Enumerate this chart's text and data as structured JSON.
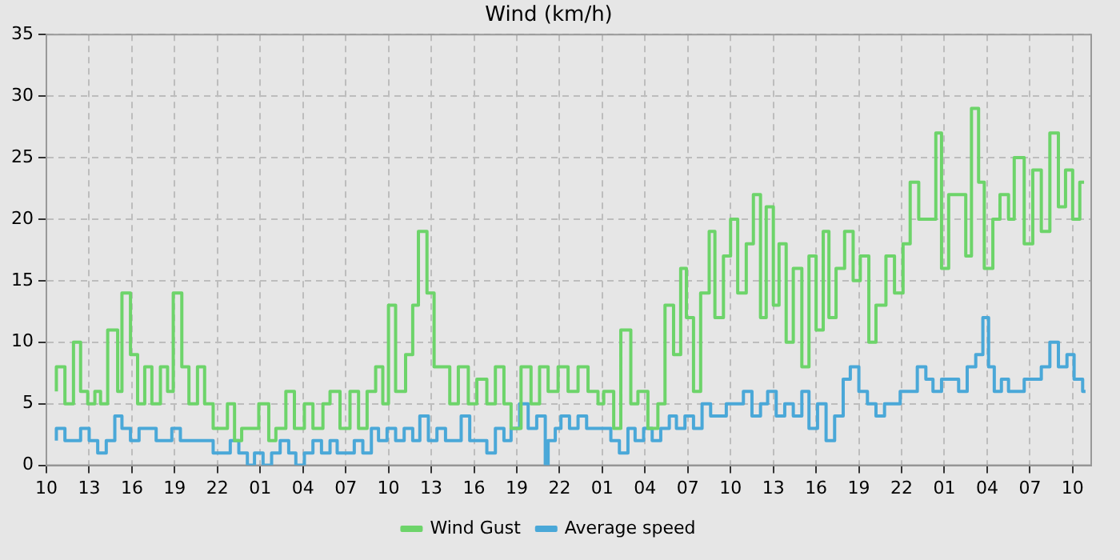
{
  "chart_data": {
    "type": "step",
    "title": "Wind (km/h)",
    "legend": "bottom",
    "grid": true,
    "line_style": "solid",
    "marker": "none",
    "xlim": [
      "--01-01T10:00",
      "--01-04T11:18"
    ],
    "ylim": [
      0,
      35
    ],
    "yticks": [
      0,
      5,
      10,
      15,
      20,
      25,
      30,
      35
    ],
    "xticks": [
      {
        "value": "--01-01T10:00",
        "label": "10"
      },
      {
        "value": "--01-01T13:00",
        "label": "13"
      },
      {
        "value": "--01-01T16:00",
        "label": "16"
      },
      {
        "value": "--01-01T19:00",
        "label": "19"
      },
      {
        "value": "--01-01T22:00",
        "label": "22"
      },
      {
        "value": "--01-02T01:00",
        "label": "01"
      },
      {
        "value": "--01-02T04:00",
        "label": "04"
      },
      {
        "value": "--01-02T07:00",
        "label": "07"
      },
      {
        "value": "--01-02T10:00",
        "label": "10"
      },
      {
        "value": "--01-02T13:00",
        "label": "13"
      },
      {
        "value": "--01-02T16:00",
        "label": "16"
      },
      {
        "value": "--01-02T19:00",
        "label": "19"
      },
      {
        "value": "--01-02T22:00",
        "label": "22"
      },
      {
        "value": "--01-03T01:00",
        "label": "01"
      },
      {
        "value": "--01-03T04:00",
        "label": "04"
      },
      {
        "value": "--01-03T07:00",
        "label": "07"
      },
      {
        "value": "--01-03T10:00",
        "label": "10"
      },
      {
        "value": "--01-03T13:00",
        "label": "13"
      },
      {
        "value": "--01-03T16:00",
        "label": "16"
      },
      {
        "value": "--01-03T19:00",
        "label": "19"
      },
      {
        "value": "--01-03T22:00",
        "label": "22"
      },
      {
        "value": "--01-04T01:00",
        "label": "01"
      },
      {
        "value": "--01-04T04:00",
        "label": "04"
      },
      {
        "value": "--01-04T07:00",
        "label": "07"
      },
      {
        "value": "--01-04T10:00",
        "label": "10"
      }
    ],
    "series": [
      {
        "name": "Wind Gust",
        "color": "#6dd46a",
        "x": [
          "--01-01T10:42",
          "--01-01T11:18",
          "--01-01T11:54",
          "--01-01T12:24",
          "--01-01T12:54",
          "--01-01T13:24",
          "--01-01T13:48",
          "--01-01T14:18",
          "--01-01T15:00",
          "--01-01T15:18",
          "--01-01T15:54",
          "--01-01T16:24",
          "--01-01T16:54",
          "--01-01T17:24",
          "--01-01T18:00",
          "--01-01T18:30",
          "--01-01T18:54",
          "--01-01T19:30",
          "--01-01T20:00",
          "--01-01T20:36",
          "--01-01T21:06",
          "--01-01T21:42",
          "--01-01T22:12",
          "--01-01T22:42",
          "--01-01T23:12",
          "--01-01T23:42",
          "--01-02T00:18",
          "--01-02T00:54",
          "--01-02T01:36",
          "--01-02T02:06",
          "--01-02T02:48",
          "--01-02T03:24",
          "--01-02T04:06",
          "--01-02T04:42",
          "--01-02T05:24",
          "--01-02T05:54",
          "--01-02T06:36",
          "--01-02T07:18",
          "--01-02T07:54",
          "--01-02T08:30",
          "--01-02T09:06",
          "--01-02T09:36",
          "--01-02T10:00",
          "--01-02T10:30",
          "--01-02T11:12",
          "--01-02T11:42",
          "--01-02T12:06",
          "--01-02T12:42",
          "--01-02T13:12",
          "--01-02T13:48",
          "--01-02T14:18",
          "--01-02T14:54",
          "--01-02T15:36",
          "--01-02T16:12",
          "--01-02T16:54",
          "--01-02T17:30",
          "--01-02T18:06",
          "--01-02T18:36",
          "--01-02T19:18",
          "--01-02T20:00",
          "--01-02T20:36",
          "--01-02T21:12",
          "--01-02T21:54",
          "--01-02T22:36",
          "--01-02T23:18",
          "--01-03T00:00",
          "--01-03T00:42",
          "--01-03T01:06",
          "--01-03T01:48",
          "--01-03T02:18",
          "--01-03T03:00",
          "--01-03T03:30",
          "--01-03T04:12",
          "--01-03T04:54",
          "--01-03T05:24",
          "--01-03T06:00",
          "--01-03T06:30",
          "--01-03T06:54",
          "--01-03T07:24",
          "--01-03T07:54",
          "--01-03T08:30",
          "--01-03T08:54",
          "--01-03T09:30",
          "--01-03T10:00",
          "--01-03T10:30",
          "--01-03T11:06",
          "--01-03T11:36",
          "--01-03T12:06",
          "--01-03T12:30",
          "--01-03T13:00",
          "--01-03T13:24",
          "--01-03T13:54",
          "--01-03T14:24",
          "--01-03T15:00",
          "--01-03T15:30",
          "--01-03T16:00",
          "--01-03T16:30",
          "--01-03T16:54",
          "--01-03T17:24",
          "--01-03T18:00",
          "--01-03T18:36",
          "--01-03T19:06",
          "--01-03T19:42",
          "--01-03T20:12",
          "--01-03T20:54",
          "--01-03T21:30",
          "--01-03T22:06",
          "--01-03T22:36",
          "--01-03T23:12",
          "--01-03T23:48",
          "--01-04T00:24",
          "--01-04T00:48",
          "--01-04T01:18",
          "--01-04T01:54",
          "--01-04T02:30",
          "--01-04T02:54",
          "--01-04T03:24",
          "--01-04T03:48",
          "--01-04T04:24",
          "--01-04T04:54",
          "--01-04T05:30",
          "--01-04T05:54",
          "--01-04T06:36",
          "--01-04T07:12",
          "--01-04T07:48",
          "--01-04T08:24",
          "--01-04T09:00",
          "--01-04T09:30",
          "--01-04T10:00",
          "--01-04T10:30",
          "--01-04T10:48"
        ],
        "values": [
          6,
          8,
          5,
          10,
          6,
          5,
          6,
          5,
          11,
          6,
          14,
          9,
          5,
          8,
          5,
          8,
          6,
          14,
          8,
          5,
          8,
          5,
          3,
          3,
          5,
          2,
          3,
          3,
          5,
          2,
          3,
          6,
          3,
          5,
          3,
          5,
          6,
          3,
          6,
          3,
          6,
          8,
          5,
          13,
          6,
          9,
          13,
          19,
          14,
          8,
          8,
          5,
          8,
          5,
          7,
          5,
          8,
          5,
          3,
          8,
          5,
          8,
          6,
          8,
          6,
          8,
          6,
          5,
          6,
          3,
          11,
          5,
          6,
          3,
          5,
          13,
          9,
          16,
          12,
          6,
          14,
          19,
          12,
          17,
          20,
          14,
          18,
          22,
          12,
          21,
          13,
          18,
          10,
          16,
          8,
          17,
          11,
          19,
          12,
          16,
          19,
          15,
          17,
          10,
          13,
          17,
          14,
          18,
          23,
          20,
          20,
          27,
          16,
          22,
          22,
          17,
          29,
          23,
          16,
          20,
          22,
          20,
          25,
          18,
          24,
          19,
          27,
          21,
          24,
          20,
          23
        ]
      },
      {
        "name": "Average speed",
        "color": "#4aa8d8",
        "x": [
          "--01-01T10:42",
          "--01-01T11:18",
          "--01-01T11:54",
          "--01-01T12:24",
          "--01-01T13:00",
          "--01-01T13:36",
          "--01-01T14:12",
          "--01-01T14:48",
          "--01-01T15:18",
          "--01-01T15:54",
          "--01-01T16:30",
          "--01-01T17:06",
          "--01-01T17:42",
          "--01-01T18:12",
          "--01-01T18:48",
          "--01-01T19:24",
          "--01-01T20:00",
          "--01-01T20:36",
          "--01-01T21:06",
          "--01-01T21:42",
          "--01-01T22:18",
          "--01-01T22:54",
          "--01-01T23:30",
          "--01-02T00:06",
          "--01-02T00:36",
          "--01-02T01:12",
          "--01-02T01:48",
          "--01-02T02:24",
          "--01-02T03:00",
          "--01-02T03:30",
          "--01-02T04:06",
          "--01-02T04:42",
          "--01-02T05:18",
          "--01-02T05:54",
          "--01-02T06:24",
          "--01-02T07:00",
          "--01-02T07:36",
          "--01-02T08:12",
          "--01-02T08:48",
          "--01-02T09:18",
          "--01-02T09:54",
          "--01-02T10:30",
          "--01-02T11:06",
          "--01-02T11:42",
          "--01-02T12:12",
          "--01-02T12:48",
          "--01-02T13:24",
          "--01-02T14:00",
          "--01-02T14:36",
          "--01-02T15:06",
          "--01-02T15:42",
          "--01-02T16:18",
          "--01-02T16:54",
          "--01-02T17:30",
          "--01-02T18:06",
          "--01-02T18:36",
          "--01-02T19:12",
          "--01-02T19:48",
          "--01-02T20:24",
          "--01-02T21:00",
          "--01-02T21:12",
          "--01-02T21:42",
          "--01-02T22:06",
          "--01-02T22:42",
          "--01-02T23:18",
          "--01-02T23:54",
          "--01-03T00:24",
          "--01-03T01:00",
          "--01-03T01:36",
          "--01-03T02:12",
          "--01-03T02:48",
          "--01-03T03:18",
          "--01-03T03:54",
          "--01-03T04:30",
          "--01-03T05:06",
          "--01-03T05:42",
          "--01-03T06:12",
          "--01-03T06:48",
          "--01-03T07:24",
          "--01-03T08:00",
          "--01-03T08:36",
          "--01-03T09:12",
          "--01-03T09:42",
          "--01-03T10:18",
          "--01-03T10:54",
          "--01-03T11:30",
          "--01-03T12:06",
          "--01-03T12:36",
          "--01-03T13:12",
          "--01-03T13:48",
          "--01-03T14:24",
          "--01-03T15:00",
          "--01-03T15:30",
          "--01-03T16:06",
          "--01-03T16:42",
          "--01-03T17:18",
          "--01-03T17:54",
          "--01-03T18:24",
          "--01-03T19:00",
          "--01-03T19:36",
          "--01-03T20:12",
          "--01-03T20:48",
          "--01-03T21:18",
          "--01-03T21:54",
          "--01-03T22:30",
          "--01-03T23:06",
          "--01-03T23:42",
          "--01-04T00:12",
          "--01-04T00:48",
          "--01-04T01:24",
          "--01-04T02:00",
          "--01-04T02:36",
          "--01-04T03:12",
          "--01-04T03:42",
          "--01-04T04:06",
          "--01-04T04:30",
          "--01-04T05:00",
          "--01-04T05:30",
          "--01-04T06:06",
          "--01-04T06:36",
          "--01-04T07:12",
          "--01-04T07:48",
          "--01-04T08:24",
          "--01-04T09:00",
          "--01-04T09:36",
          "--01-04T10:06",
          "--01-04T10:42",
          "--01-04T10:54"
        ],
        "values": [
          2,
          3,
          2,
          2,
          3,
          2,
          1,
          2,
          4,
          3,
          2,
          3,
          3,
          2,
          2,
          3,
          2,
          2,
          2,
          2,
          1,
          1,
          2,
          1,
          0,
          1,
          0,
          1,
          2,
          1,
          0,
          1,
          2,
          1,
          2,
          1,
          1,
          2,
          1,
          3,
          2,
          3,
          2,
          3,
          2,
          4,
          2,
          3,
          2,
          2,
          4,
          2,
          2,
          1,
          3,
          2,
          3,
          5,
          3,
          4,
          0,
          2,
          3,
          4,
          3,
          4,
          3,
          3,
          3,
          2,
          1,
          3,
          2,
          3,
          2,
          3,
          4,
          3,
          4,
          3,
          5,
          4,
          4,
          5,
          5,
          6,
          4,
          5,
          6,
          4,
          5,
          4,
          6,
          3,
          5,
          2,
          4,
          7,
          8,
          6,
          5,
          4,
          5,
          5,
          6,
          6,
          8,
          7,
          6,
          7,
          7,
          6,
          8,
          9,
          12,
          8,
          6,
          7,
          6,
          6,
          7,
          7,
          8,
          10,
          8,
          9,
          7,
          6
        ]
      }
    ]
  }
}
